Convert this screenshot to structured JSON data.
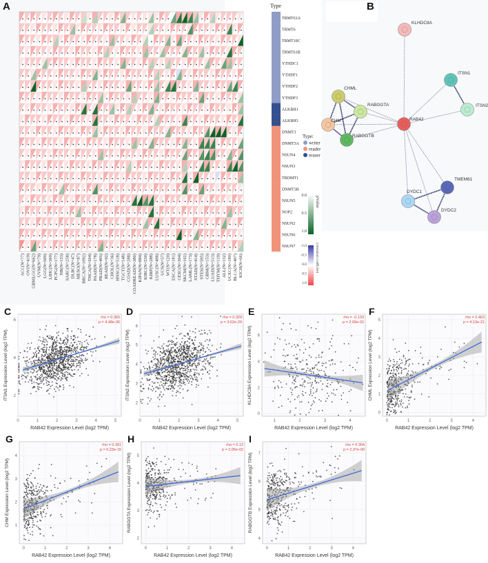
{
  "panels": {
    "A": "A",
    "B": "B",
    "C": "C",
    "D": "D",
    "E": "E",
    "F": "F",
    "G": "G",
    "H": "H",
    "I": "I"
  },
  "heatmap": {
    "type_header": "Type",
    "rows": [
      "TRMT61A",
      "TRMT6",
      "TRMT10C",
      "TRMT61B",
      "YTHDC1",
      "YTHDF1",
      "YTHDF2",
      "YTHDF3",
      "ALKBH1",
      "ALKBH3",
      "DNMT1",
      "DNMT3A",
      "NSUN4",
      "NSUN3",
      "TRDMT1",
      "DNMT3B",
      "NSUN5",
      "NOP2",
      "NSUN2",
      "NSUN6",
      "NSUN7"
    ],
    "row_types": [
      "writer",
      "writer",
      "writer",
      "writer",
      "writer",
      "writer",
      "writer",
      "writer",
      "eraser",
      "eraser",
      "reader",
      "reader",
      "reader",
      "reader",
      "reader",
      "reader",
      "reader",
      "reader",
      "reader",
      "reader",
      "reader"
    ],
    "columns": [
      "ACC(N=77)",
      "OV(N=419)",
      "GBMLGG(N=662)",
      "UVM(N=79)",
      "LGG(N=509)",
      "LIHC(N=369)",
      "PCPG(N=177)",
      "NB(N=153)",
      "SARC(N=258)",
      "DLBC(N=47)",
      "MESO(N=87)",
      "BRCA(N=1092)",
      "THCA(N=504)",
      "PAAD(N=178)",
      "PRAD(N=495)",
      "READ(N=92)",
      "CHOL(N=36)",
      "HNSC(N=518)",
      "TGCT(N=148)",
      "COAD(N=288)",
      "COADREAD(N=380)",
      "KIPAN(N=884)",
      "KIRC(N=530)",
      "KIRP(N=288)",
      "LUSC(N=498)",
      "UCS(N=57)",
      "WT(N=120)",
      "ESCA(N=181)",
      "CESC(N=304)",
      "SKCM(N=102)",
      "LAML(N=173)",
      "STAD(N=414)",
      "STES(N=595)",
      "GBM(N=153)",
      "LUAD(N=513)",
      "THYM(N=119)",
      "ALL(N=132)",
      "UCEC(N=180)",
      "BLCA(N=407)",
      "KICH(N=66)"
    ],
    "correlation_codes_note": "digit d -> rho=(d-3)/10",
    "correlation": [
      "6565456546554655465545444653656546545554",
      "5546554655465546554645545546554655465546",
      "6554655465546554655465436554655465546554",
      "5465546554655465546554655465546554655465",
      "4555456554655465546554655455546554654655",
      "5546554655465546554655465546254655465546",
      "5556554655465546554655465546554655465546",
      "6554655465546554655465546554655465546554",
      "5465546554655465546554655465546554655465",
      "4655465546554655465546554655465546554655",
      "5546554655465546554655465546554655465546",
      "6554655465546554655465546554655465546554",
      "5465546554655465546554655465546554655465",
      "4655465546554655465546554655465546554655",
      "5546554655465546554655465546554655426546",
      "6554655465546554655465546554655465546554",
      "5465546554655465546554655465546554655465",
      "4655465546554655465546554655465546554655",
      "5546554655465546554655465546554655465546",
      "6554655465546554655465546554655465546554",
      "7465546554655465546554655465546554655465"
    ],
    "pvalue_codes_note": "digit d -> green intensity (0 = not significant, marked with a dot)",
    "pvalue": [
      "0000000000010200004000030005897300200000",
      "0000000003000000000000020000006000000700",
      "0000002000000000300000200040500000000009",
      "0000000000000002000000300300040030000800",
      "0000300000000000004000020020000003005300",
      "0030000000000400000000002000400000000000",
      "0090000000020000000500003078000400000570",
      "0000000000000030000020004000000050000003",
      "0000000000080800300200040000000000000003",
      "0000000000000800000000002000070000000008",
      "0000000000000300000000000040000006999000",
      "0000000000000000000030040000040077700005",
      "0000000000000030000000000000050067600406",
      "0000000000000000000200000000020077000796",
      "0000000000000000000000000000080900000003",
      "0000000300000600000000000000060050000000",
      "0000000000000000000089680000000000000000",
      "0000000000300000000000080000000000000300",
      "0000000000000000000000308000000000004000",
      "0000000000000000000000000000900400000000",
      "0050000000000040000000000000000000000002"
    ],
    "type_legend": {
      "title": "Type:",
      "items": [
        {
          "label": "writer",
          "color": "#8e9cc6"
        },
        {
          "label": "reader",
          "color": "#f0937a"
        },
        {
          "label": "eraser",
          "color": "#34508f"
        }
      ]
    },
    "pvalue_legend": {
      "title": "pValue",
      "ticks": [
        "0.0",
        "0.5",
        "1.0"
      ]
    },
    "corr_legend": {
      "title": "correlation coefficient",
      "ticks": [
        "-1.0",
        "-0.5",
        "0.0",
        "0.5",
        "1.0"
      ]
    }
  },
  "network": {
    "nodes": [
      {
        "id": "KLHDC8A",
        "color": "#f5b9b9"
      },
      {
        "id": "ITSN1",
        "color": "#5ec4b8"
      },
      {
        "id": "ITSN2",
        "color": "#bcecd0"
      },
      {
        "id": "CHML",
        "color": "#cccd6c"
      },
      {
        "id": "RABGGTA",
        "color": "#cbe8a0"
      },
      {
        "id": "CHM",
        "color": "#f5c6a0"
      },
      {
        "id": "RABGGTB",
        "color": "#5fb860"
      },
      {
        "id": "RAB42",
        "color": "#e95c5c"
      },
      {
        "id": "TMEM61",
        "color": "#5a68b8"
      },
      {
        "id": "DYDC1",
        "color": "#aad8f6"
      },
      {
        "id": "DYDC2",
        "color": "#baa2dc"
      }
    ],
    "edges": [
      [
        "RAB42",
        "KLHDC8A"
      ],
      [
        "RAB42",
        "ITSN1"
      ],
      [
        "RAB42",
        "ITSN2"
      ],
      [
        "RAB42",
        "CHML"
      ],
      [
        "RAB42",
        "RABGGTA"
      ],
      [
        "RAB42",
        "CHM"
      ],
      [
        "RAB42",
        "RABGGTB"
      ],
      [
        "RAB42",
        "TMEM61"
      ],
      [
        "RAB42",
        "DYDC1"
      ],
      [
        "RAB42",
        "DYDC2"
      ],
      [
        "ITSN1",
        "ITSN2"
      ],
      [
        "CHML",
        "RABGGTA"
      ],
      [
        "CHML",
        "CHM"
      ],
      [
        "CHML",
        "RABGGTB"
      ],
      [
        "RABGGTA",
        "CHM"
      ],
      [
        "RABGGTA",
        "RABGGTB"
      ],
      [
        "CHM",
        "RABGGTB"
      ],
      [
        "TMEM61",
        "DYDC1"
      ],
      [
        "TMEM61",
        "DYDC2"
      ],
      [
        "DYDC1",
        "DYDC2"
      ]
    ]
  },
  "chart_data": [
    {
      "type": "scatter",
      "panel": "C",
      "ylabel": "ITSN1 Expression Level (log2 TPM)",
      "xlabel": "RAB42 Expression Level (log2 TPM)",
      "rho": "rho = 0.365",
      "p": "p = 4.48e-36",
      "xlim": [
        0,
        5.3
      ],
      "ylim": [
        0.9,
        6.3
      ],
      "xticks": [
        0,
        1,
        2,
        3,
        4,
        5
      ],
      "yticks": [
        2,
        4,
        6
      ],
      "fit": [
        [
          0.25,
          3.35
        ],
        [
          5.2,
          4.9
        ]
      ],
      "n": 1000,
      "x_mean": 1.9,
      "x_sd": 0.8,
      "noise_sd": 0.65,
      "ci": 0.12,
      "show_xlabel": false
    },
    {
      "type": "scatter",
      "panel": "D",
      "ylabel": "ITSN2 Expression Level (log2 TPM)",
      "xlabel": "RAB42 Expression Level (log2 TPM)",
      "rho": "rho = 0.329",
      "p": "p = 3.62e-29",
      "xlim": [
        0,
        5.3
      ],
      "ylim": [
        1.3,
        6.6
      ],
      "xticks": [
        0,
        1,
        2,
        3,
        4,
        5
      ],
      "yticks": [
        2,
        3,
        4,
        5,
        6
      ],
      "fit": [
        [
          0.2,
          3.5
        ],
        [
          5.2,
          4.95
        ]
      ],
      "n": 1000,
      "x_mean": 1.9,
      "x_sd": 0.8,
      "noise_sd": 0.7,
      "ci": 0.12,
      "show_xlabel": true
    },
    {
      "type": "scatter",
      "panel": "E",
      "ylabel": "KLHDC8A Expression Level (log2 TPM)",
      "xlabel": "RAB42 Expression Level (log2 TPM)",
      "rho": "rho = -0.133",
      "p": "p = 2.09e-02",
      "xlim": [
        0.5,
        4.6
      ],
      "ylim": [
        -0.2,
        7.6
      ],
      "xticks": [
        1,
        2,
        3,
        4
      ],
      "yticks": [
        0,
        2,
        4,
        6
      ],
      "fit": [
        [
          0.6,
          3.45
        ],
        [
          4.5,
          2.35
        ]
      ],
      "n": 300,
      "x_mean": 2.4,
      "x_sd": 0.75,
      "noise_sd": 1.5,
      "ci": 0.5,
      "show_xlabel": true
    },
    {
      "type": "scatter",
      "panel": "F",
      "ylabel": "CHML Expression Level (log2 TPM)",
      "xlabel": "RAB42 Expression Level (log2 TPM)",
      "rho": "rho = 0.463",
      "p": "p = 4.13e-21",
      "xlim": [
        -0.2,
        4.6
      ],
      "ylim": [
        -0.2,
        5.3
      ],
      "xticks": [
        0,
        1,
        2,
        3,
        4
      ],
      "yticks": [
        0,
        1,
        2,
        3,
        4,
        5
      ],
      "fit": [
        [
          0.05,
          1.2
        ],
        [
          4.4,
          3.8
        ]
      ],
      "n": 400,
      "x_mean": 0.4,
      "x_sd": 0.7,
      "noise_sd": 0.8,
      "ci": 0.45,
      "skew": true,
      "show_xlabel": true
    },
    {
      "type": "scatter",
      "panel": "G",
      "ylabel": "CHM Expression Level (log2 TPM)",
      "xlabel": "RAB42 Expression Level (log2 TPM)",
      "rho": "rho = 0.391",
      "p": "p = 5.23e-15",
      "xlim": [
        -0.2,
        4.6
      ],
      "ylim": [
        0.2,
        4.6
      ],
      "xticks": [
        0,
        1,
        2,
        3,
        4
      ],
      "yticks": [
        1,
        2,
        3,
        4
      ],
      "fit": [
        [
          0,
          1.7
        ],
        [
          4.4,
          3.3
        ]
      ],
      "n": 380,
      "x_mean": 0.4,
      "x_sd": 0.7,
      "noise_sd": 0.65,
      "ci": 0.35,
      "skew": true,
      "show_xlabel": true
    },
    {
      "type": "scatter",
      "panel": "H",
      "ylabel": "RABGGTA Expression Level (log2 TPM)",
      "xlabel": "RAB42 Expression Level (log2 TPM)",
      "rho": "rho = 0.12",
      "p": "p = 2.05e-02",
      "xlim": [
        -0.2,
        4.6
      ],
      "ylim": [
        1.8,
        5.5
      ],
      "xticks": [
        0,
        1,
        2,
        3,
        4
      ],
      "yticks": [
        2,
        3,
        4,
        5
      ],
      "fit": [
        [
          0,
          3.88
        ],
        [
          4.4,
          4.27
        ]
      ],
      "n": 380,
      "x_mean": 0.4,
      "x_sd": 0.7,
      "noise_sd": 0.45,
      "ci": 0.25,
      "skew": true,
      "show_xlabel": true
    },
    {
      "type": "scatter",
      "panel": "I",
      "ylabel": "RABGGTB Expression Level (log2 TPM)",
      "xlabel": "RAB42 Expression Level (log2 TPM)",
      "rho": "rho = 0.304",
      "p": "p = 2.37e-09",
      "xlim": [
        -0.2,
        4.6
      ],
      "ylim": [
        3.8,
        7.4
      ],
      "xticks": [
        0,
        1,
        2,
        3,
        4
      ],
      "yticks": [
        4,
        5,
        6,
        7
      ],
      "fit": [
        [
          0,
          5.35
        ],
        [
          4.4,
          6.38
        ]
      ],
      "n": 380,
      "x_mean": 0.4,
      "x_sd": 0.7,
      "noise_sd": 0.55,
      "ci": 0.3,
      "skew": true,
      "show_xlabel": true
    }
  ]
}
